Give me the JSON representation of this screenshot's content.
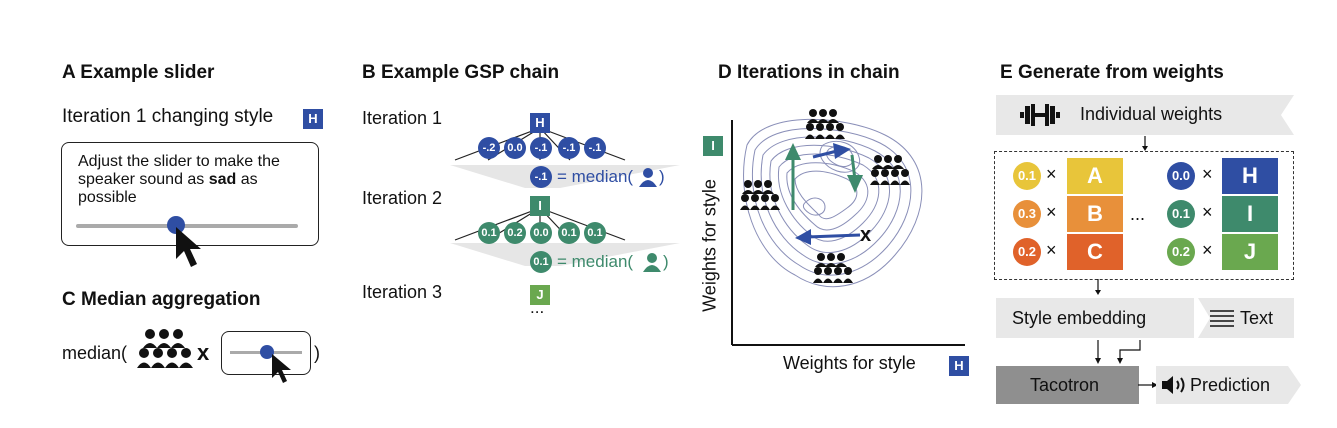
{
  "panel_a": {
    "title": "A Example slider",
    "iteration_label": "Iteration 1 changing style",
    "iteration_badge": "H",
    "instruction_part1": "Adjust the slider to make the speaker sound as ",
    "instruction_bold": "sad",
    "instruction_part2": " as possible",
    "slider_value": 0.45
  },
  "panel_c": {
    "title": "C Median aggregation",
    "median_open": "median(",
    "times": "x",
    "close": ")"
  },
  "panel_b": {
    "title": "B Example GSP chain",
    "iterations": [
      {
        "label": "Iteration 1",
        "badge": "H",
        "values": [
          "-.2",
          "0.0",
          "-.1",
          "-.1",
          "-.1"
        ],
        "result": "-.1",
        "eq": "= median("
      },
      {
        "label": "Iteration 2",
        "badge": "I",
        "values": [
          "0.1",
          "0.2",
          "0.0",
          "0.1",
          "0.1"
        ],
        "result": "0.1",
        "eq": "= median("
      },
      {
        "label": "Iteration 3",
        "badge": "J"
      }
    ],
    "ellipsis": "..."
  },
  "panel_d": {
    "title": "D Iterations in chain",
    "y_label": "Weights for style",
    "y_badge": "I",
    "x_label": "Weights for style",
    "x_badge": "H",
    "marker": "x"
  },
  "panel_e": {
    "title": "E Generate from weights",
    "individual_weights": "Individual weights",
    "rows_left": [
      {
        "w": "0.1",
        "letter": "A",
        "color": "#e8c53a",
        "wcolor": "#e8c53a"
      },
      {
        "w": "0.3",
        "letter": "B",
        "color": "#e8903a",
        "wcolor": "#e8903a"
      },
      {
        "w": "0.2",
        "letter": "C",
        "color": "#e0622a",
        "wcolor": "#e0622a"
      }
    ],
    "rows_right": [
      {
        "w": "0.0",
        "letter": "H",
        "color": "#2f4ea3",
        "wcolor": "#2f4ea3"
      },
      {
        "w": "0.1",
        "letter": "I",
        "color": "#3e8a6c",
        "wcolor": "#3e8a6c"
      },
      {
        "w": "0.2",
        "letter": "J",
        "color": "#6aa84f",
        "wcolor": "#6aa84f"
      }
    ],
    "times": "×",
    "dots": "...",
    "style_embedding": "Style embedding",
    "text": "Text",
    "tacotron": "Tacotron",
    "prediction": "Prediction"
  },
  "colors": {
    "blue": "#2f4ea3",
    "green": "#3e8a6c",
    "lightgreen": "#6aa84f"
  }
}
